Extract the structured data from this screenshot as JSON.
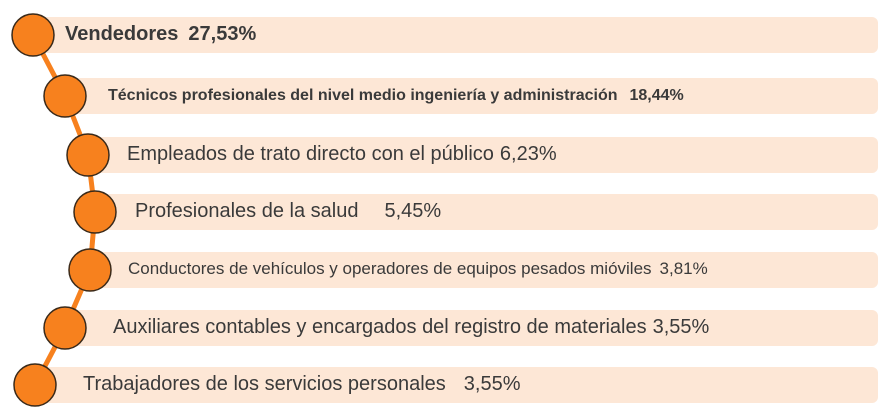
{
  "items": [
    {
      "label": "Vendedores",
      "value": "27,53%"
    },
    {
      "label": "Técnicos profesionales del nivel medio ingeniería y administración",
      "value": "18,44%"
    },
    {
      "label": "Empleados de trato directo con el público",
      "value": "6,23%"
    },
    {
      "label": "Profesionales de la salud",
      "value": "5,45%"
    },
    {
      "label": "Conductores de vehículos y operadores de equipos pesados mióviles",
      "value": "3,81%"
    },
    {
      "label": "Auxiliares contables y encargados del registro de materiales",
      "value": "3,55%"
    },
    {
      "label": "Trabajadores de los servicios personales",
      "value": "3,55%"
    }
  ]
}
